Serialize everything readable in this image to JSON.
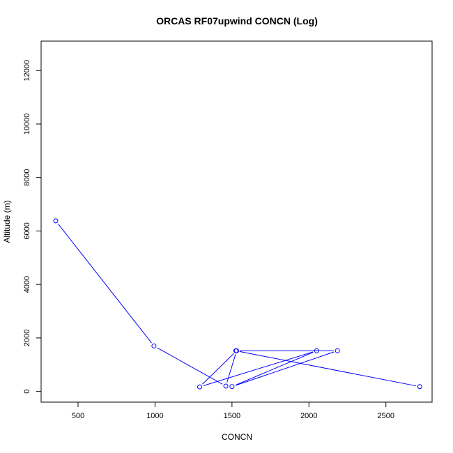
{
  "chart_data": {
    "type": "line",
    "title": "ORCAS RF07upwind CONCN (Log)",
    "xlabel": "CONCN",
    "ylabel": "Altitude (m)",
    "xlim": [
      260,
      2800
    ],
    "ylim": [
      -400,
      13100
    ],
    "xticks": [
      500,
      1000,
      1500,
      2000,
      2500
    ],
    "yticks": [
      0,
      2000,
      4000,
      6000,
      8000,
      10000,
      12000
    ],
    "grid": false,
    "marker": "open-circle",
    "line_color": "#0000ff",
    "series": [
      {
        "x": [
          355,
          993,
          1460,
          1530,
          1290,
          2050,
          1500,
          2185,
          1525,
          2720
        ],
        "y": [
          6380,
          1700,
          200,
          1520,
          170,
          1520,
          180,
          1520,
          1520,
          180
        ]
      }
    ]
  }
}
